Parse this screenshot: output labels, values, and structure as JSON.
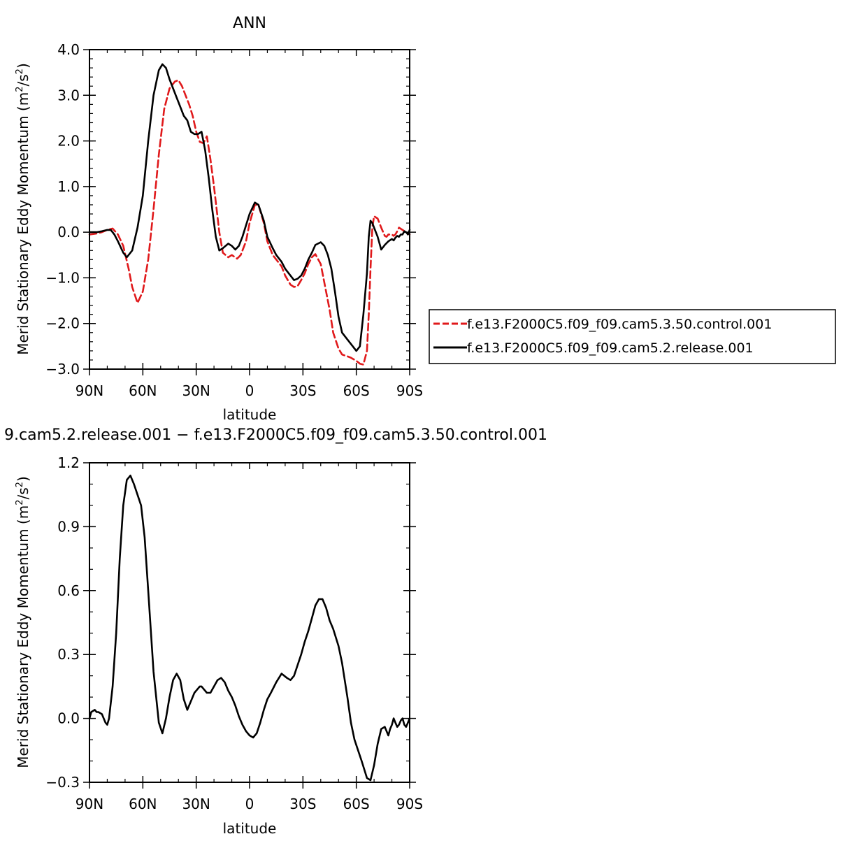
{
  "colors": {
    "control": "#e0191b",
    "release": "#000000",
    "axis": "#000000",
    "background": "#ffffff"
  },
  "chart_data": [
    {
      "type": "line",
      "title": "ANN",
      "xlabel": "latitude",
      "ylabel": "Merid Stationary Eddy Momentum",
      "ylabel_unit_base": "(m",
      "ylabel_unit_mid": "/s",
      "ylabel_unit_end": ")",
      "ylabel_unit_sup": "2",
      "xlim": [
        90,
        -90
      ],
      "ylim": [
        -3.0,
        4.0
      ],
      "x_ticks": [
        {
          "value": 90,
          "label": "90N"
        },
        {
          "value": 60,
          "label": "60N"
        },
        {
          "value": 30,
          "label": "30N"
        },
        {
          "value": 0,
          "label": "0"
        },
        {
          "value": -30,
          "label": "30S"
        },
        {
          "value": -60,
          "label": "60S"
        },
        {
          "value": -90,
          "label": "90S"
        }
      ],
      "y_ticks": [
        {
          "value": 4.0,
          "label": "4.0"
        },
        {
          "value": 3.0,
          "label": "3.0"
        },
        {
          "value": 2.0,
          "label": "2.0"
        },
        {
          "value": 1.0,
          "label": "1.0"
        },
        {
          "value": 0.0,
          "label": "0.0"
        },
        {
          "value": -1.0,
          "label": "−1.0"
        },
        {
          "value": -2.0,
          "label": "−2.0"
        },
        {
          "value": -3.0,
          "label": "−3.0"
        }
      ],
      "legend_position": "right",
      "series": [
        {
          "name": "f.e13.F2000C5.f09_f09.cam5.3.50.control.001",
          "color": "#e0191b",
          "dash": "dashed",
          "x": [
            90,
            86,
            83,
            80,
            77,
            74,
            71,
            68,
            66,
            63,
            60,
            57,
            54,
            51,
            48,
            45,
            42,
            40,
            38,
            36,
            34,
            32,
            30,
            28,
            26,
            24,
            22,
            20,
            17,
            15,
            12,
            10,
            7,
            5,
            2,
            0,
            -3,
            -5,
            -8,
            -10,
            -13,
            -15,
            -18,
            -20,
            -23,
            -25,
            -27,
            -29,
            -31,
            -33,
            -35,
            -37,
            -40,
            -42,
            -45,
            -47,
            -50,
            -52,
            -55,
            -57,
            -60,
            -62,
            -64,
            -66,
            -67,
            -68,
            -69,
            -70,
            -72,
            -74,
            -76,
            -77,
            -78,
            -79,
            -80,
            -81,
            -82,
            -83,
            -84,
            -86,
            -88,
            -90
          ],
          "y": [
            -0.05,
            -0.03,
            0.0,
            0.05,
            0.08,
            -0.05,
            -0.3,
            -0.8,
            -1.2,
            -1.55,
            -1.3,
            -0.6,
            0.5,
            1.7,
            2.7,
            3.15,
            3.3,
            3.33,
            3.2,
            3.0,
            2.8,
            2.55,
            2.2,
            1.98,
            1.95,
            2.1,
            1.6,
            1.0,
            0.0,
            -0.45,
            -0.55,
            -0.5,
            -0.58,
            -0.5,
            -0.2,
            0.2,
            0.6,
            0.6,
            0.2,
            -0.2,
            -0.5,
            -0.6,
            -0.75,
            -0.95,
            -1.15,
            -1.2,
            -1.18,
            -1.05,
            -0.9,
            -0.7,
            -0.55,
            -0.48,
            -0.7,
            -1.1,
            -1.7,
            -2.2,
            -2.55,
            -2.68,
            -2.72,
            -2.75,
            -2.82,
            -2.88,
            -2.9,
            -2.6,
            -1.8,
            -0.8,
            0.1,
            0.35,
            0.3,
            0.1,
            -0.08,
            -0.1,
            -0.05,
            -0.05,
            -0.05,
            -0.08,
            -0.05,
            0.02,
            0.1,
            0.05,
            0.0,
            -0.05
          ]
        },
        {
          "name": "f.e13.F2000C5.f09_f09.cam5.2.release.001",
          "color": "#000000",
          "dash": "solid",
          "x": [
            90,
            86,
            83,
            80,
            78,
            76,
            74,
            71,
            69,
            66,
            63,
            60,
            57,
            54,
            51,
            49,
            47,
            45,
            43,
            41,
            39,
            37,
            35,
            33,
            31,
            29,
            27,
            25,
            23,
            21,
            19,
            17,
            15,
            12,
            10,
            8,
            6,
            4,
            2,
            0,
            -3,
            -5,
            -8,
            -10,
            -13,
            -15,
            -18,
            -20,
            -23,
            -25,
            -27,
            -29,
            -31,
            -33,
            -35,
            -37,
            -40,
            -42,
            -44,
            -46,
            -48,
            -50,
            -52,
            -55,
            -57,
            -60,
            -62,
            -64,
            -66,
            -67,
            -68,
            -69,
            -70,
            -72,
            -74,
            -76,
            -78,
            -80,
            -81,
            -82,
            -83,
            -84,
            -85,
            -86,
            -87,
            -88,
            -89,
            -90
          ],
          "y": [
            0.0,
            0.0,
            0.02,
            0.05,
            0.05,
            -0.05,
            -0.2,
            -0.45,
            -0.55,
            -0.4,
            0.1,
            0.8,
            2.0,
            3.0,
            3.55,
            3.68,
            3.6,
            3.35,
            3.15,
            2.95,
            2.75,
            2.55,
            2.45,
            2.2,
            2.15,
            2.15,
            2.2,
            1.8,
            1.2,
            0.5,
            -0.1,
            -0.4,
            -0.35,
            -0.25,
            -0.3,
            -0.38,
            -0.3,
            -0.1,
            0.15,
            0.4,
            0.65,
            0.6,
            0.25,
            -0.1,
            -0.35,
            -0.5,
            -0.65,
            -0.8,
            -0.95,
            -1.05,
            -1.02,
            -0.95,
            -0.8,
            -0.6,
            -0.45,
            -0.28,
            -0.22,
            -0.3,
            -0.5,
            -0.8,
            -1.3,
            -1.85,
            -2.2,
            -2.35,
            -2.45,
            -2.6,
            -2.5,
            -1.8,
            -0.9,
            -0.1,
            0.25,
            0.2,
            0.1,
            -0.1,
            -0.38,
            -0.28,
            -0.2,
            -0.15,
            -0.18,
            -0.12,
            -0.08,
            -0.1,
            -0.05,
            -0.05,
            0.02,
            0.0,
            -0.05,
            0.05
          ]
        }
      ]
    },
    {
      "type": "line",
      "title": "9.cam5.2.release.001 − f.e13.F2000C5.f09_f09.cam5.3.50.control.001",
      "xlabel": "latitude",
      "ylabel": "Merid Stationary Eddy Momentum",
      "ylabel_unit_base": "(m",
      "ylabel_unit_mid": "/s",
      "ylabel_unit_end": ")",
      "ylabel_unit_sup": "2",
      "xlim": [
        90,
        -90
      ],
      "ylim": [
        -0.3,
        1.2
      ],
      "x_ticks": [
        {
          "value": 90,
          "label": "90N"
        },
        {
          "value": 60,
          "label": "60N"
        },
        {
          "value": 30,
          "label": "30N"
        },
        {
          "value": 0,
          "label": "0"
        },
        {
          "value": -30,
          "label": "30S"
        },
        {
          "value": -60,
          "label": "60S"
        },
        {
          "value": -90,
          "label": "90S"
        }
      ],
      "y_ticks": [
        {
          "value": 1.2,
          "label": "1.2"
        },
        {
          "value": 0.9,
          "label": "0.9"
        },
        {
          "value": 0.6,
          "label": "0.6"
        },
        {
          "value": 0.3,
          "label": "0.3"
        },
        {
          "value": 0.0,
          "label": "0.0"
        },
        {
          "value": -0.3,
          "label": "−0.3"
        }
      ],
      "series": [
        {
          "color": "#000000",
          "dash": "solid",
          "x": [
            90,
            89,
            87,
            86,
            85,
            83,
            81,
            80,
            79,
            77,
            75,
            73,
            71,
            69,
            67,
            65,
            63,
            61,
            59,
            57,
            54,
            51,
            49,
            47,
            45,
            43,
            41,
            39,
            37,
            35,
            33,
            31,
            29,
            28,
            27,
            26,
            24,
            22,
            20,
            18,
            16,
            14,
            12,
            10,
            8,
            6,
            4,
            2,
            0,
            -2,
            -4,
            -6,
            -8,
            -10,
            -12,
            -15,
            -18,
            -21,
            -23,
            -25,
            -27,
            -29,
            -31,
            -33,
            -35,
            -37,
            -39,
            -41,
            -43,
            -45,
            -47,
            -50,
            -52,
            -55,
            -57,
            -59,
            -61,
            -63,
            -66,
            -68,
            -70,
            -72,
            -74,
            -76,
            -78,
            -79,
            -80,
            -81,
            -82,
            -83,
            -84,
            -85,
            -86,
            -87,
            -88,
            -89,
            -90
          ],
          "y": [
            0.0,
            0.03,
            0.04,
            0.03,
            0.03,
            0.02,
            -0.02,
            -0.03,
            0.0,
            0.15,
            0.4,
            0.75,
            1.0,
            1.12,
            1.14,
            1.1,
            1.05,
            1.0,
            0.85,
            0.6,
            0.22,
            -0.02,
            -0.07,
            0.0,
            0.1,
            0.18,
            0.21,
            0.18,
            0.09,
            0.04,
            0.08,
            0.12,
            0.14,
            0.15,
            0.15,
            0.14,
            0.12,
            0.12,
            0.15,
            0.18,
            0.19,
            0.17,
            0.13,
            0.1,
            0.06,
            0.01,
            -0.03,
            -0.06,
            -0.08,
            -0.09,
            -0.07,
            -0.02,
            0.04,
            0.09,
            0.12,
            0.17,
            0.21,
            0.19,
            0.18,
            0.2,
            0.25,
            0.3,
            0.36,
            0.41,
            0.47,
            0.53,
            0.56,
            0.56,
            0.52,
            0.46,
            0.42,
            0.34,
            0.26,
            0.1,
            -0.02,
            -0.1,
            -0.15,
            -0.2,
            -0.28,
            -0.29,
            -0.22,
            -0.12,
            -0.05,
            -0.04,
            -0.08,
            -0.05,
            -0.03,
            0.0,
            -0.02,
            -0.04,
            -0.03,
            -0.01,
            0.0,
            -0.03,
            -0.04,
            -0.02,
            0.0
          ]
        }
      ]
    }
  ]
}
